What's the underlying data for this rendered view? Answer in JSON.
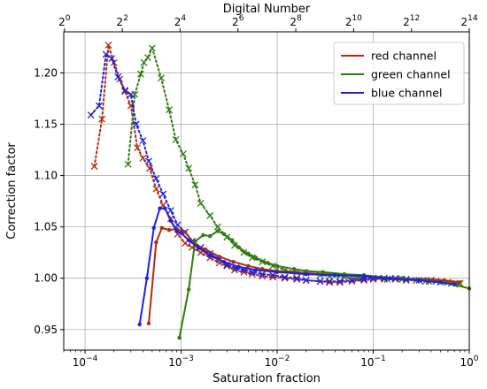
{
  "chart_data": {
    "type": "line",
    "xlabel": "Saturation fraction",
    "ylabel": "Correction factor",
    "top_xlabel": "Digital Number",
    "x_scale": "log",
    "xlim": [
      6e-05,
      1.0
    ],
    "ylim": [
      0.93,
      1.24
    ],
    "x_ticks": [
      {
        "value": 0.0001,
        "base": "10",
        "exp": "−4"
      },
      {
        "value": 0.001,
        "base": "10",
        "exp": "−3"
      },
      {
        "value": 0.01,
        "base": "10",
        "exp": "−2"
      },
      {
        "value": 0.1,
        "base": "10",
        "exp": "−1"
      },
      {
        "value": 1.0,
        "base": "10",
        "exp": "0"
      }
    ],
    "y_ticks": [
      "0.95",
      "1.00",
      "1.05",
      "1.10",
      "1.15",
      "1.20"
    ],
    "top_ticks": [
      {
        "value": 1,
        "base": "2",
        "exp": "0"
      },
      {
        "value": 4,
        "base": "2",
        "exp": "2"
      },
      {
        "value": 16,
        "base": "2",
        "exp": "4"
      },
      {
        "value": 64,
        "base": "2",
        "exp": "6"
      },
      {
        "value": 256,
        "base": "2",
        "exp": "8"
      },
      {
        "value": 1024,
        "base": "2",
        "exp": "10"
      },
      {
        "value": 4096,
        "base": "2",
        "exp": "12"
      },
      {
        "value": 16384,
        "base": "2",
        "exp": "14"
      }
    ],
    "top_scale": {
      "dn_max": 16384
    },
    "grid": true,
    "legend_position": "top-right",
    "series": [
      {
        "name": "red channel",
        "color": "#b22b0c",
        "solid": [
          [
            0.00046,
            0.956
          ],
          [
            0.00055,
            1.035
          ],
          [
            0.00063,
            1.049
          ],
          [
            0.00075,
            1.047
          ],
          [
            0.0009,
            1.048
          ],
          [
            0.0011,
            1.045
          ],
          [
            0.0014,
            1.033
          ],
          [
            0.0018,
            1.028
          ],
          [
            0.0025,
            1.021
          ],
          [
            0.0035,
            1.016
          ],
          [
            0.005,
            1.012
          ],
          [
            0.007,
            1.009
          ],
          [
            0.01,
            1.007
          ],
          [
            0.015,
            1.006
          ],
          [
            0.02,
            1.005
          ],
          [
            0.03,
            1.004
          ],
          [
            0.05,
            1.003
          ],
          [
            0.08,
            1.002
          ],
          [
            0.12,
            1.001
          ],
          [
            0.2,
            1.0
          ],
          [
            0.35,
            0.999
          ],
          [
            0.55,
            0.998
          ],
          [
            0.8,
            0.996
          ]
        ],
        "crosses": [
          [
            0.000125,
            1.109
          ],
          [
            0.00015,
            1.155
          ],
          [
            0.000175,
            1.227
          ],
          [
            0.0002,
            1.21
          ],
          [
            0.00023,
            1.194
          ],
          [
            0.00026,
            1.182
          ],
          [
            0.0003,
            1.168
          ],
          [
            0.00035,
            1.127
          ],
          [
            0.0004,
            1.117
          ],
          [
            0.00047,
            1.107
          ],
          [
            0.00055,
            1.087
          ],
          [
            0.00065,
            1.071
          ],
          [
            0.00078,
            1.058
          ],
          [
            0.00092,
            1.043
          ],
          [
            0.0011,
            1.034
          ],
          [
            0.0013,
            1.03
          ],
          [
            0.0016,
            1.025
          ],
          [
            0.002,
            1.02
          ],
          [
            0.0025,
            1.015
          ],
          [
            0.003,
            1.012
          ],
          [
            0.0036,
            1.008
          ],
          [
            0.0045,
            1.006
          ],
          [
            0.0055,
            1.004
          ],
          [
            0.007,
            1.002
          ],
          [
            0.009,
            1.001
          ],
          [
            0.012,
            1.0
          ],
          [
            0.016,
            0.999
          ],
          [
            0.02,
            0.998
          ],
          [
            0.028,
            0.997
          ],
          [
            0.035,
            0.996
          ],
          [
            0.045,
            0.996
          ],
          [
            0.06,
            0.997
          ],
          [
            0.08,
            0.998
          ],
          [
            0.1,
            0.999
          ],
          [
            0.13,
            0.999
          ],
          [
            0.17,
            0.999
          ],
          [
            0.22,
            0.998
          ],
          [
            0.28,
            0.998
          ],
          [
            0.35,
            0.997
          ],
          [
            0.45,
            0.997
          ],
          [
            0.6,
            0.996
          ],
          [
            0.8,
            0.995
          ]
        ]
      },
      {
        "name": "green channel",
        "color": "#2e7d0e",
        "solid": [
          [
            0.00096,
            0.942
          ],
          [
            0.0012,
            0.989
          ],
          [
            0.0014,
            1.036
          ],
          [
            0.0017,
            1.042
          ],
          [
            0.002,
            1.041
          ],
          [
            0.0024,
            1.046
          ],
          [
            0.0028,
            1.043
          ],
          [
            0.0034,
            1.037
          ],
          [
            0.004,
            1.03
          ],
          [
            0.005,
            1.024
          ],
          [
            0.006,
            1.02
          ],
          [
            0.008,
            1.015
          ],
          [
            0.01,
            1.012
          ],
          [
            0.015,
            1.009
          ],
          [
            0.02,
            1.007
          ],
          [
            0.03,
            1.006
          ],
          [
            0.05,
            1.004
          ],
          [
            0.08,
            1.003
          ],
          [
            0.12,
            1.001
          ],
          [
            0.2,
            1.0
          ],
          [
            0.35,
            0.998
          ],
          [
            0.55,
            0.996
          ],
          [
            0.75,
            0.993
          ],
          [
            1.0,
            0.99
          ]
        ],
        "crosses": [
          [
            0.00028,
            1.111
          ],
          [
            0.00033,
            1.179
          ],
          [
            0.00038,
            1.199
          ],
          [
            0.00041,
            1.21
          ],
          [
            0.00045,
            1.215
          ],
          [
            0.0005,
            1.224
          ],
          [
            0.00062,
            1.195
          ],
          [
            0.00075,
            1.164
          ],
          [
            0.00088,
            1.135
          ],
          [
            0.00105,
            1.121
          ],
          [
            0.0012,
            1.107
          ],
          [
            0.0014,
            1.091
          ],
          [
            0.0016,
            1.073
          ],
          [
            0.002,
            1.061
          ],
          [
            0.0024,
            1.05
          ],
          [
            0.003,
            1.04
          ],
          [
            0.0036,
            1.032
          ],
          [
            0.0045,
            1.025
          ],
          [
            0.0055,
            1.02
          ],
          [
            0.007,
            1.016
          ],
          [
            0.009,
            1.012
          ],
          [
            0.012,
            1.008
          ],
          [
            0.016,
            1.006
          ],
          [
            0.02,
            1.005
          ],
          [
            0.028,
            1.003
          ],
          [
            0.035,
            1.002
          ],
          [
            0.05,
            1.001
          ],
          [
            0.07,
            1.0
          ],
          [
            0.1,
            1.0
          ],
          [
            0.14,
            0.999
          ],
          [
            0.2,
            0.999
          ],
          [
            0.28,
            0.998
          ],
          [
            0.38,
            0.997
          ],
          [
            0.5,
            0.996
          ],
          [
            0.65,
            0.995
          ],
          [
            0.8,
            0.995
          ]
        ]
      },
      {
        "name": "blue channel",
        "color": "#1f1fe6",
        "solid": [
          [
            0.00037,
            0.955
          ],
          [
            0.00044,
            1.0
          ],
          [
            0.00052,
            1.049
          ],
          [
            0.0006,
            1.068
          ],
          [
            0.00068,
            1.068
          ],
          [
            0.00078,
            1.056
          ],
          [
            0.0009,
            1.046
          ],
          [
            0.001,
            1.044
          ],
          [
            0.0012,
            1.037
          ],
          [
            0.0015,
            1.03
          ],
          [
            0.002,
            1.022
          ],
          [
            0.0028,
            1.016
          ],
          [
            0.004,
            1.011
          ],
          [
            0.006,
            1.008
          ],
          [
            0.01,
            1.006
          ],
          [
            0.02,
            1.004
          ],
          [
            0.04,
            1.003
          ],
          [
            0.08,
            1.002
          ],
          [
            0.15,
            1.0
          ],
          [
            0.3,
            0.998
          ],
          [
            0.5,
            0.996
          ],
          [
            0.7,
            0.994
          ]
        ],
        "crosses": [
          [
            0.000115,
            1.159
          ],
          [
            0.00014,
            1.168
          ],
          [
            0.000165,
            1.218
          ],
          [
            0.00019,
            1.214
          ],
          [
            0.00022,
            1.196
          ],
          [
            0.00026,
            1.183
          ],
          [
            0.0003,
            1.179
          ],
          [
            0.00034,
            1.15
          ],
          [
            0.0004,
            1.134
          ],
          [
            0.00046,
            1.114
          ],
          [
            0.00055,
            1.097
          ],
          [
            0.00065,
            1.082
          ],
          [
            0.00078,
            1.066
          ],
          [
            0.00092,
            1.052
          ],
          [
            0.0011,
            1.045
          ],
          [
            0.0013,
            1.036
          ],
          [
            0.0016,
            1.03
          ],
          [
            0.002,
            1.024
          ],
          [
            0.0025,
            1.018
          ],
          [
            0.003,
            1.013
          ],
          [
            0.0037,
            1.01
          ],
          [
            0.0045,
            1.008
          ],
          [
            0.0055,
            1.006
          ],
          [
            0.007,
            1.004
          ],
          [
            0.009,
            1.003
          ],
          [
            0.012,
            1.001
          ],
          [
            0.016,
            1.0
          ],
          [
            0.02,
            0.998
          ],
          [
            0.028,
            0.997
          ],
          [
            0.035,
            0.997
          ],
          [
            0.045,
            0.997
          ],
          [
            0.06,
            0.998
          ],
          [
            0.08,
            0.999
          ],
          [
            0.1,
            1.0
          ],
          [
            0.13,
            1.0
          ],
          [
            0.17,
            1.0
          ],
          [
            0.22,
            0.999
          ],
          [
            0.3,
            0.998
          ],
          [
            0.4,
            0.998
          ]
        ]
      }
    ]
  }
}
